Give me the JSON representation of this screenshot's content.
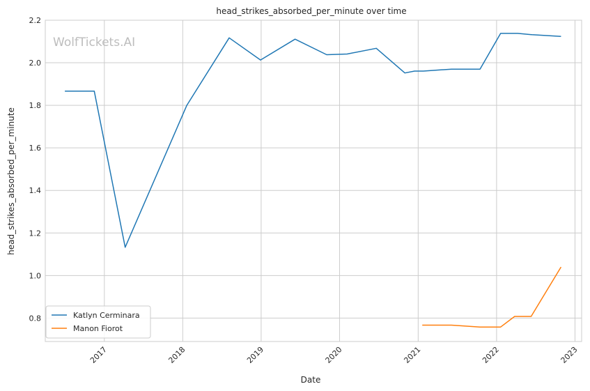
{
  "chart_data": {
    "type": "line",
    "title": "head_strikes_absorbed_per_minute over time",
    "xlabel": "Date",
    "ylabel": "head_strikes_absorbed_per_minute",
    "watermark": "WolfTickets.AI",
    "xlim": [
      "2016-04-01",
      "2023-02-01"
    ],
    "ylim": [
      0.69,
      2.2
    ],
    "x_ticks": [
      "2017-01-01",
      "2018-01-01",
      "2019-01-01",
      "2020-01-01",
      "2021-01-01",
      "2022-01-01",
      "2023-01-01"
    ],
    "x_tick_labels": [
      "2017",
      "2018",
      "2019",
      "2020",
      "2021",
      "2022",
      "2023"
    ],
    "y_ticks": [
      0.8,
      1.0,
      1.2,
      1.4,
      1.6,
      1.8,
      2.0,
      2.2
    ],
    "y_tick_labels": [
      "0.8",
      "1.0",
      "1.2",
      "1.4",
      "1.6",
      "1.8",
      "2.0",
      "2.2"
    ],
    "grid": true,
    "legend_position": "lower-left",
    "series": [
      {
        "name": "Katlyn Cerminara",
        "color": "#1f77b4",
        "points": [
          [
            "2016-07-01",
            1.867
          ],
          [
            "2016-11-15",
            1.867
          ],
          [
            "2017-04-08",
            1.133
          ],
          [
            "2018-01-20",
            1.8
          ],
          [
            "2018-08-05",
            2.117
          ],
          [
            "2018-12-29",
            2.013
          ],
          [
            "2019-06-08",
            2.111
          ],
          [
            "2019-11-02",
            2.038
          ],
          [
            "2020-02-05",
            2.041
          ],
          [
            "2020-06-20",
            2.068
          ],
          [
            "2020-10-31",
            1.952
          ],
          [
            "2020-12-15",
            1.961
          ],
          [
            "2021-01-25",
            1.961
          ],
          [
            "2021-06-05",
            1.97
          ],
          [
            "2021-10-16",
            1.97
          ],
          [
            "2022-01-20",
            2.138
          ],
          [
            "2022-04-09",
            2.138
          ],
          [
            "2022-06-15",
            2.132
          ],
          [
            "2022-10-28",
            2.124
          ]
        ]
      },
      {
        "name": "Manon Fiorot",
        "color": "#ff7f0e",
        "points": [
          [
            "2021-01-20",
            0.767
          ],
          [
            "2021-06-05",
            0.767
          ],
          [
            "2021-10-16",
            0.758
          ],
          [
            "2022-01-20",
            0.758
          ],
          [
            "2022-03-26",
            0.808
          ],
          [
            "2022-06-11",
            0.808
          ],
          [
            "2022-10-28",
            1.04
          ]
        ]
      }
    ]
  }
}
